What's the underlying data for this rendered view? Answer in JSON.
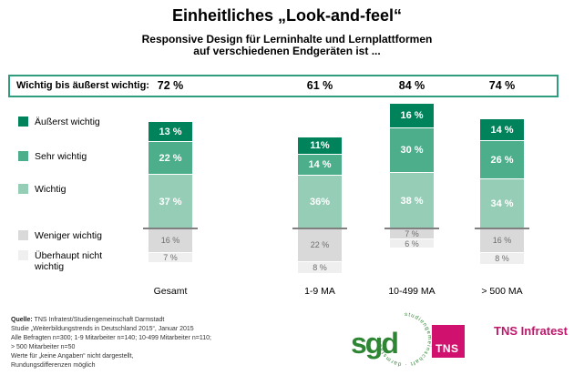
{
  "chart_data": {
    "type": "stacked-bar",
    "title": "Einheitliches „Look-and-feel“",
    "subtitle": "Responsive Design für Lerninhalte und Lernplattformen\nauf verschiedenen Endgeräten ist ...",
    "categories": [
      "Gesamt",
      "1-9 MA",
      "10-499 MA",
      "> 500 MA"
    ],
    "unit": "%",
    "baseline_note": "green segments stacked above baseline, gray segments below",
    "series": [
      {
        "name": "Äußerst wichtig",
        "legend_label": "Äußerst wichtig",
        "color": "#00835a",
        "group": "above",
        "values": [
          13,
          11,
          16,
          14
        ],
        "labels": [
          "13 %",
          "11%",
          "16 %",
          "14 %"
        ]
      },
      {
        "name": "Sehr wichtig",
        "legend_label": "Sehr wichtig",
        "color": "#4dae8c",
        "group": "above",
        "values": [
          22,
          14,
          30,
          26
        ],
        "labels": [
          "22 %",
          "14 %",
          "30 %",
          "26 %"
        ]
      },
      {
        "name": "Wichtig",
        "legend_label": "Wichtig",
        "color": "#96cdb6",
        "group": "above",
        "values": [
          37,
          36,
          38,
          34
        ],
        "labels": [
          "37 %",
          "36%",
          "38 %",
          "34 %"
        ]
      },
      {
        "name": "Weniger wichtig",
        "legend_label": "Weniger wichtig",
        "color": "#d9d9d9",
        "group": "below",
        "values": [
          16,
          22,
          7,
          16
        ],
        "labels": [
          "16 %",
          "22 %",
          "7 %",
          "16 %"
        ]
      },
      {
        "name": "Überhaupt nicht wichtig",
        "legend_label": "Überhaupt nicht\nwichtig",
        "color": "#efefef",
        "group": "below",
        "values": [
          7,
          8,
          6,
          8
        ],
        "labels": [
          "7 %",
          "8 %",
          "6 %",
          "8 %"
        ]
      }
    ],
    "summary": {
      "label": "Wichtig bis äußerst wichtig:",
      "values": [
        72,
        61,
        84,
        74
      ],
      "labels": [
        "72 %",
        "61 %",
        "84 %",
        "74 %"
      ]
    },
    "legend_position": "left",
    "grid": false
  },
  "source": {
    "label": "Quelle:",
    "rest_line1": " TNS Infratest/Studiengemeinschaft Darmstadt",
    "lines": [
      "Studie „Weiterbildungstrends in Deutschland 2015“, Januar 2015",
      "Alle Befragten n=300; 1-9 Mitarbeiter n=140; 10-499 Mitarbeiter n=110;",
      "> 500 Mitarbeiter n=50",
      "Werte für „keine Angaben“ nicht dargestellt,",
      "Rundungsdifferenzen möglich"
    ]
  },
  "logos": {
    "sgd_text": "sgd",
    "sgd_ring_text": "studiengemeinschaft · darmstadt ·",
    "tns_box_text": "TNS",
    "tns_infratest_text": "TNS Infratest",
    "colors": {
      "sgd_green": "#2e8533",
      "tns_magenta": "#d0116d",
      "tns_infratest_text": "#c2156c",
      "summary_border_green": "#2e9c7d",
      "baseline_gray": "#808080"
    }
  }
}
